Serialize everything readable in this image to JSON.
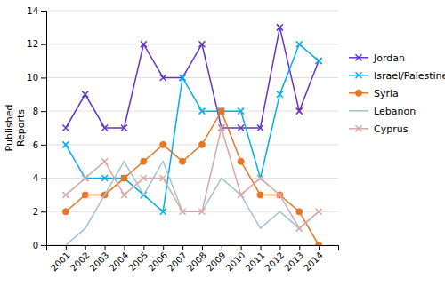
{
  "chart_data": {
    "type": "line",
    "y_label": "Published\nReports",
    "x": [
      2001,
      2002,
      2003,
      2004,
      2005,
      2006,
      2007,
      2008,
      2009,
      2010,
      2011,
      2012,
      2013,
      2014
    ],
    "xlim": [
      2000,
      2015
    ],
    "xticks": [
      2001,
      2002,
      2003,
      2004,
      2005,
      2006,
      2007,
      2008,
      2009,
      2010,
      2011,
      2012,
      2013,
      2014
    ],
    "ylim": [
      0,
      14
    ],
    "yticks": [
      0,
      2,
      4,
      6,
      8,
      10,
      12,
      14
    ],
    "grid": true,
    "legend": "right",
    "series": [
      {
        "name": "Jordan",
        "color": "#6633CC",
        "marker": "x",
        "values": [
          7,
          9,
          7,
          7,
          12,
          10,
          10,
          12,
          7,
          7,
          7,
          13,
          8,
          11
        ]
      },
      {
        "name": "Israel/Palestine",
        "color": "#00AEEF",
        "marker": "x",
        "values": [
          6,
          4,
          4,
          4,
          3,
          2,
          10,
          8,
          8,
          8,
          4,
          9,
          12,
          11
        ]
      },
      {
        "name": "Syria",
        "color": "#E87722",
        "marker": "circle",
        "values": [
          2,
          3,
          3,
          4,
          5,
          6,
          5,
          6,
          8,
          5,
          3,
          3,
          2,
          0
        ]
      },
      {
        "name": "Lebanon",
        "color": "#9DC3D4",
        "marker": "none",
        "values": [
          0,
          1,
          3,
          5,
          3,
          5,
          2,
          2,
          4,
          3,
          1,
          2,
          1,
          2
        ]
      },
      {
        "name": "Cyprus",
        "color": "#D9A7A7",
        "marker": "x",
        "values": [
          3,
          4,
          5,
          3,
          4,
          4,
          2,
          2,
          7,
          3,
          4,
          3,
          1,
          2
        ]
      }
    ]
  }
}
